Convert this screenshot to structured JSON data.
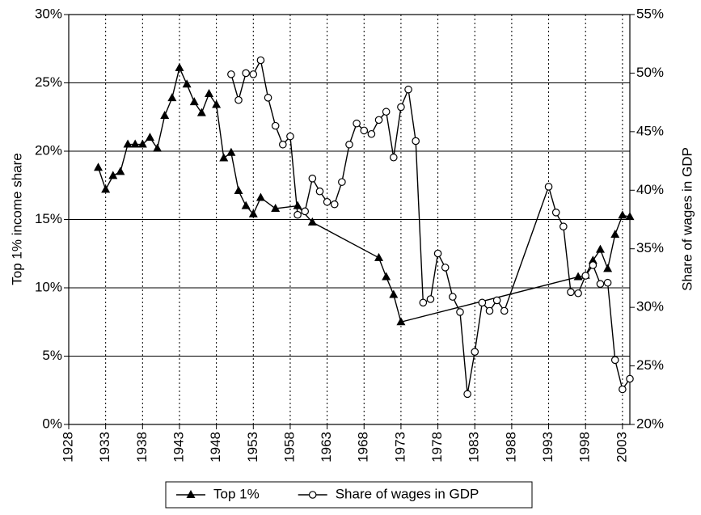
{
  "chart_data": {
    "type": "line",
    "y_label": "Top 1% income share",
    "y2_label": "Share of wages in GDP",
    "xlim": [
      1928,
      2004
    ],
    "xticks": [
      1928,
      1933,
      1938,
      1943,
      1948,
      1953,
      1958,
      1963,
      1968,
      1973,
      1978,
      1983,
      1988,
      1993,
      1998,
      2003
    ],
    "ylim": [
      0,
      30
    ],
    "yticks": [
      {
        "value": 0,
        "label": "0%"
      },
      {
        "value": 5,
        "label": "5%"
      },
      {
        "value": 10,
        "label": "10%"
      },
      {
        "value": 15,
        "label": "15%"
      },
      {
        "value": 20,
        "label": "20%"
      },
      {
        "value": 25,
        "label": "25%"
      },
      {
        "value": 30,
        "label": "30%"
      }
    ],
    "y2lim": [
      20,
      55
    ],
    "y2ticks": [
      {
        "value": 20,
        "label": "20%"
      },
      {
        "value": 25,
        "label": "25%"
      },
      {
        "value": 30,
        "label": "30%"
      },
      {
        "value": 35,
        "label": "35%"
      },
      {
        "value": 40,
        "label": "40%"
      },
      {
        "value": 45,
        "label": "45%"
      },
      {
        "value": 50,
        "label": "50%"
      },
      {
        "value": 55,
        "label": "55%"
      }
    ],
    "grid": true,
    "legend": "bottom",
    "series": [
      {
        "name": "Top 1%",
        "color": "#000000",
        "marker": "triangle",
        "x": [
          1932,
          1933,
          1934,
          1935,
          1936,
          1937,
          1938,
          1939,
          1940,
          1941,
          1942,
          1943,
          1944,
          1945,
          1946,
          1947,
          1948,
          1949,
          1950,
          1951,
          1952,
          1953,
          1954,
          1956,
          1959,
          1961,
          1970,
          1971,
          1972,
          1973,
          1997,
          1998,
          1999,
          2000,
          2001,
          2002,
          2003,
          2004
        ],
        "values": [
          18.8,
          17.2,
          18.2,
          18.5,
          20.5,
          20.5,
          20.5,
          21.0,
          20.2,
          22.6,
          23.9,
          26.1,
          24.9,
          23.6,
          22.8,
          24.2,
          23.4,
          19.5,
          19.9,
          17.1,
          16.0,
          15.4,
          16.6,
          15.8,
          16.0,
          14.8,
          12.2,
          10.8,
          9.5,
          7.5,
          10.8,
          10.9,
          12.0,
          12.8,
          11.4,
          13.9,
          15.3,
          15.2
        ]
      },
      {
        "name": "Share of wages in GDP",
        "color": "#000000",
        "marker": "circle",
        "axis": "y2",
        "x": [
          1950,
          1951,
          1952,
          1953,
          1954,
          1955,
          1956,
          1957,
          1958,
          1959,
          1960,
          1961,
          1962,
          1963,
          1964,
          1965,
          1966,
          1967,
          1968,
          1969,
          1970,
          1971,
          1972,
          1973,
          1974,
          1975,
          1976,
          1977,
          1978,
          1979,
          1980,
          1981,
          1982,
          1983,
          1984,
          1985,
          1986,
          1987,
          1993,
          1994,
          1995,
          1996,
          1997,
          1998,
          1999,
          2000,
          2001,
          2002,
          2003,
          2004
        ],
        "values": [
          49.9,
          47.7,
          50.0,
          49.9,
          51.1,
          47.9,
          45.5,
          43.9,
          44.6,
          37.9,
          38.2,
          41.0,
          39.9,
          39.0,
          38.8,
          40.7,
          43.9,
          45.7,
          45.1,
          44.8,
          46.0,
          46.7,
          42.8,
          47.1,
          48.6,
          44.2,
          30.4,
          30.7,
          34.6,
          33.4,
          30.9,
          29.6,
          22.6,
          26.2,
          30.4,
          29.7,
          30.6,
          29.7,
          40.3,
          38.1,
          36.9,
          31.3,
          31.2,
          32.7,
          33.6,
          32.0,
          32.1,
          25.5,
          23.0,
          23.9
        ]
      }
    ]
  }
}
